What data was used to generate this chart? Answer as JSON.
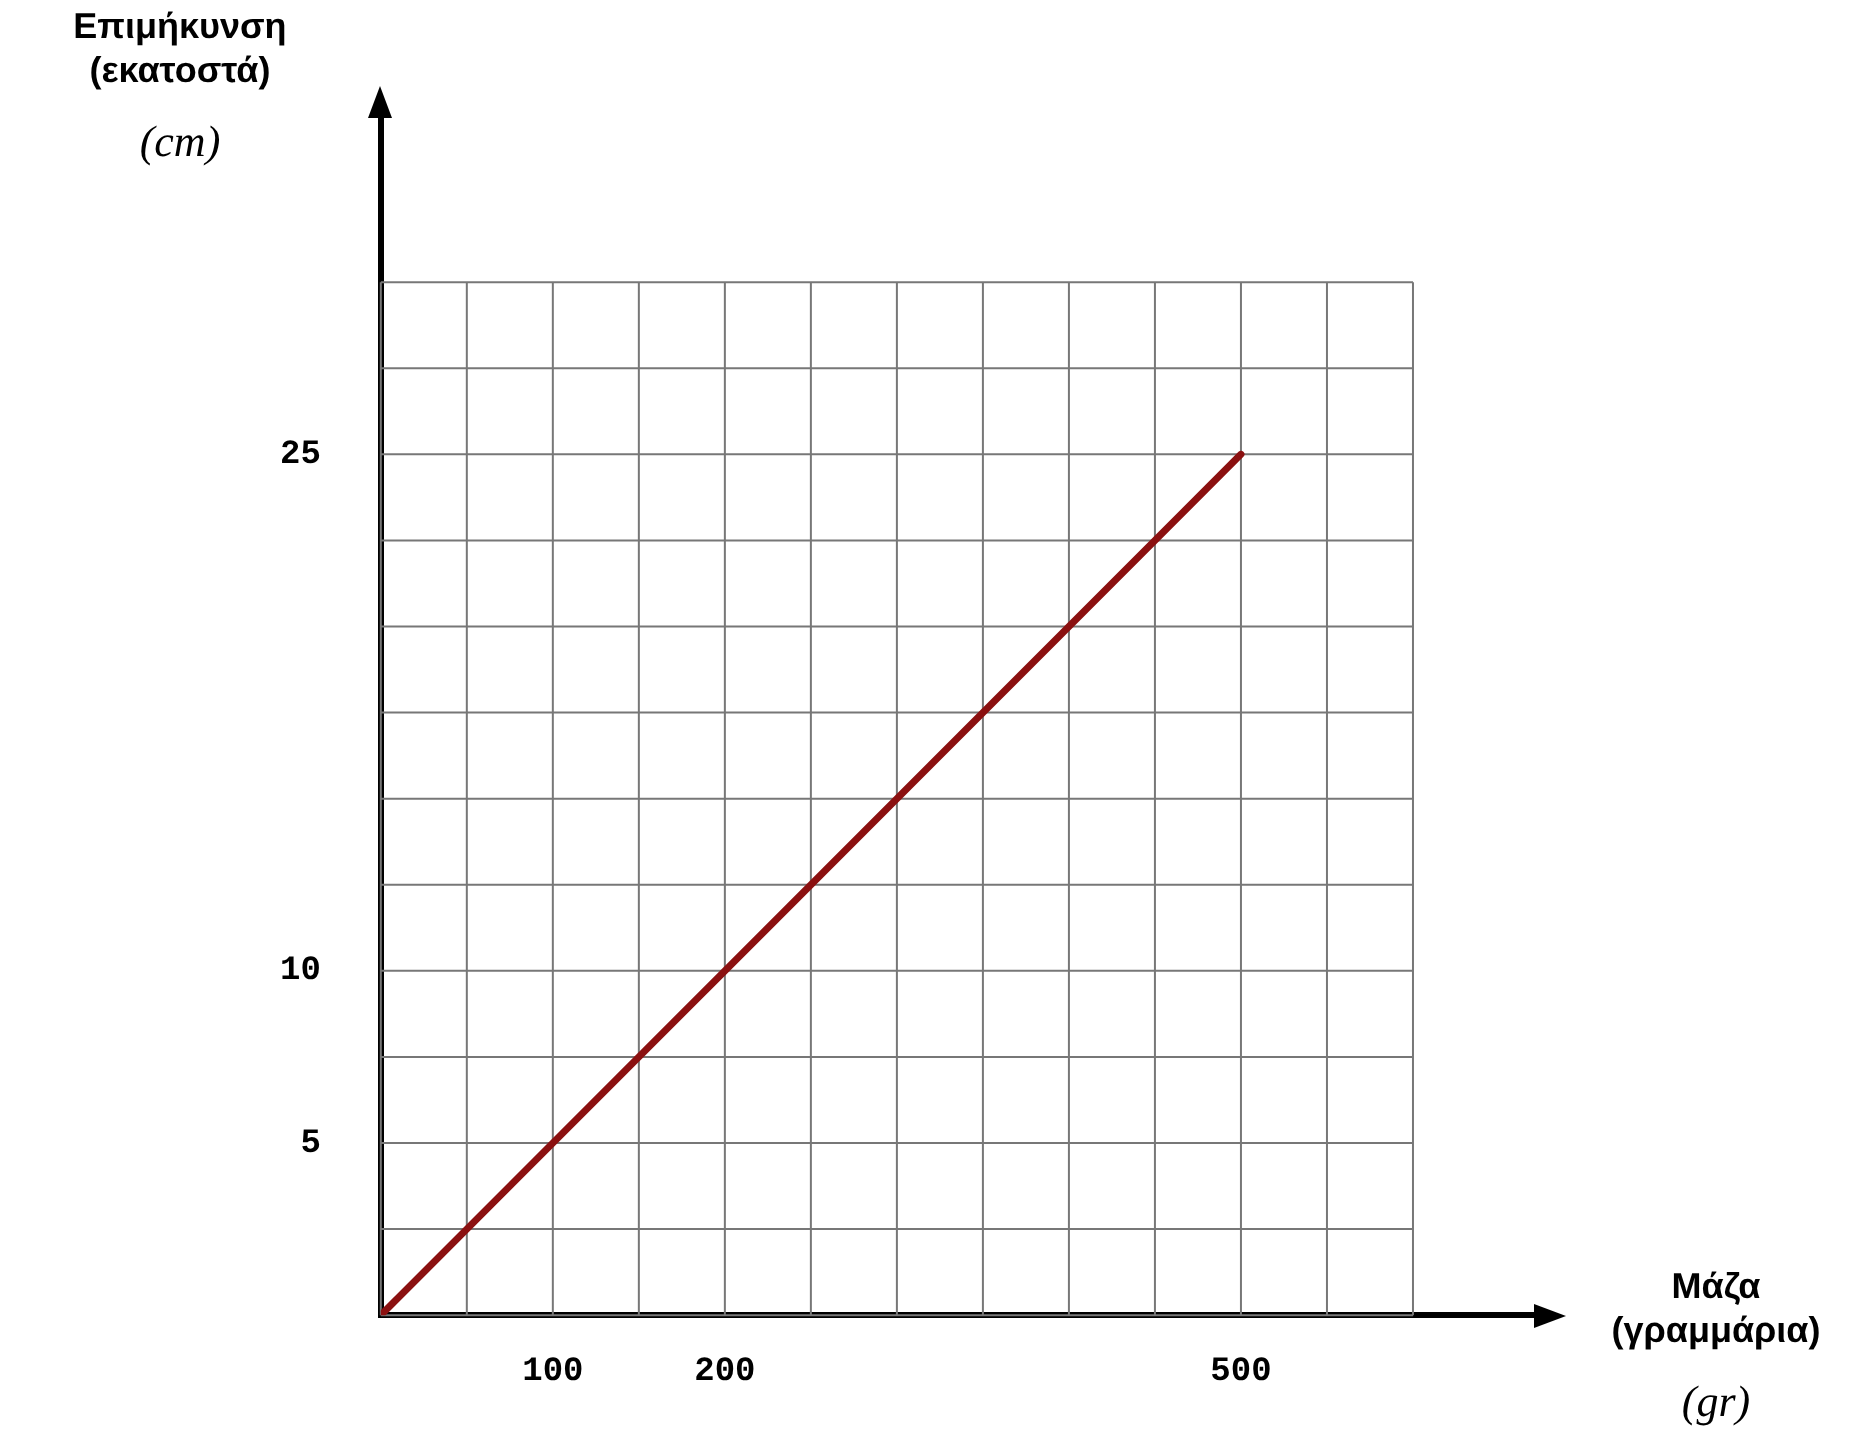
{
  "chart_data": {
    "type": "line",
    "xlabel": "Μάζα\n(γραμμάρια)\n(gr)",
    "ylabel": "Επιμήκυνση\n(εκατοστά)\n(cm)",
    "x": [
      0,
      500
    ],
    "series": [
      {
        "color": "#8b1010",
        "values": [
          0,
          25
        ]
      }
    ],
    "xlim": [
      0,
      675
    ],
    "ylim": [
      0,
      35
    ],
    "xticks": [
      {
        "value": 0,
        "label": null
      },
      {
        "value": 50,
        "label": null
      },
      100,
      {
        "value": 150,
        "label": null
      },
      200,
      {
        "value": 250,
        "label": null
      },
      {
        "value": 300,
        "label": null
      },
      {
        "value": 350,
        "label": null
      },
      {
        "value": 400,
        "label": null
      },
      {
        "value": 450,
        "label": null
      },
      500,
      {
        "value": 550,
        "label": null
      },
      {
        "value": 600,
        "label": null
      }
    ],
    "yticks": [
      {
        "value": 0,
        "label": null
      },
      {
        "value": 2.5,
        "label": null
      },
      5,
      {
        "value": 7.5,
        "label": null
      },
      10,
      {
        "value": 12.5,
        "label": null
      },
      {
        "value": 15,
        "label": null
      },
      {
        "value": 17.5,
        "label": null
      },
      {
        "value": 20,
        "label": null
      },
      {
        "value": 22.5,
        "label": null
      },
      25,
      {
        "value": 27.5,
        "label": null
      },
      {
        "value": 30,
        "label": null
      }
    ],
    "grid": true,
    "legend": false,
    "marker": "none",
    "line_style": "solid"
  }
}
